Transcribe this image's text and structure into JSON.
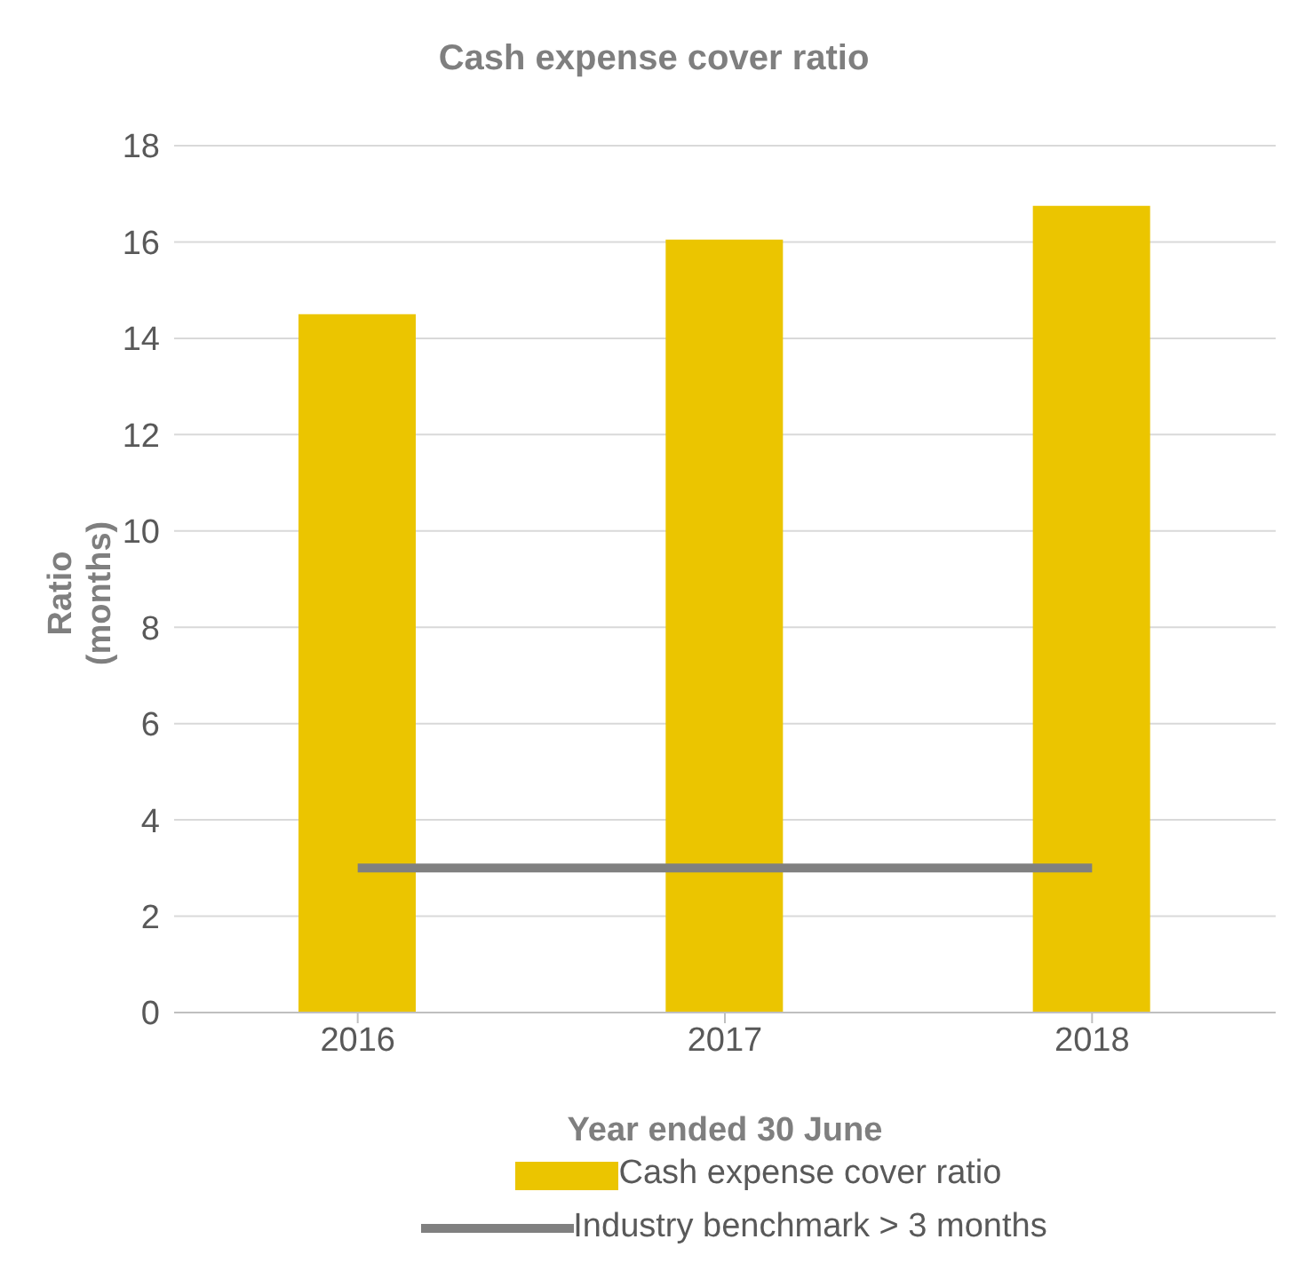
{
  "chart_data": {
    "type": "bar",
    "title": "Cash expense cover ratio",
    "xlabel": "Year ended 30 June",
    "ylabel": "Ratio\n(months)",
    "categories": [
      "2016",
      "2017",
      "2018"
    ],
    "series": [
      {
        "name": "Cash expense cover ratio",
        "color": "#ebc500",
        "values": [
          14.5,
          16.05,
          16.75
        ]
      },
      {
        "name": "Industry benchmark > 3 months",
        "type": "line",
        "color": "#808080",
        "values": [
          3,
          3,
          3
        ]
      }
    ],
    "ylim": [
      0,
      18
    ],
    "yticks": [
      0,
      2,
      4,
      6,
      8,
      10,
      12,
      14,
      16,
      18
    ],
    "grid": "y",
    "legend": "bottom",
    "marker": "none"
  }
}
